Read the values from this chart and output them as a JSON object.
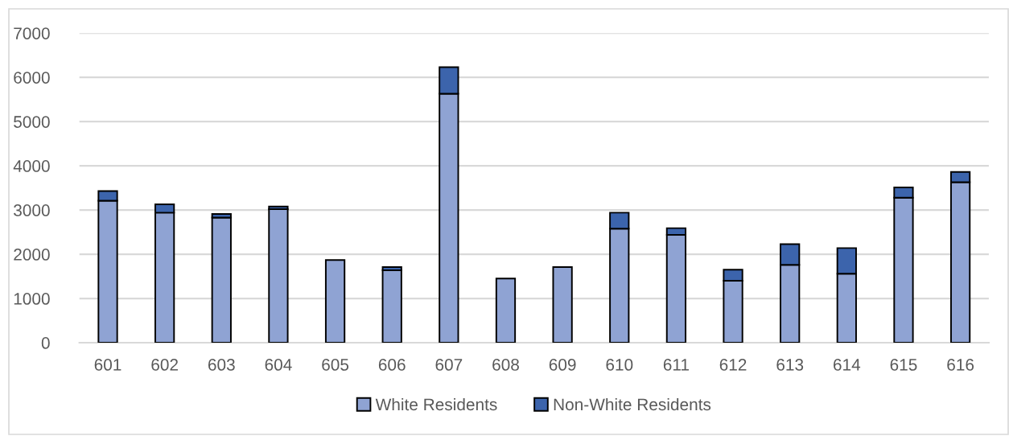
{
  "chart_data": {
    "type": "bar",
    "stacked": true,
    "categories": [
      "601",
      "602",
      "603",
      "604",
      "605",
      "606",
      "607",
      "608",
      "609",
      "610",
      "611",
      "612",
      "613",
      "614",
      "615",
      "616"
    ],
    "series": [
      {
        "name": "White Residents",
        "color": "#8fa3d3",
        "values": [
          3210,
          2940,
          2830,
          3020,
          1870,
          1640,
          5630,
          1450,
          1710,
          2580,
          2440,
          1400,
          1760,
          1560,
          3280,
          3630
        ]
      },
      {
        "name": "Non-White Residents",
        "color": "#3c64ac",
        "values": [
          220,
          190,
          80,
          60,
          null,
          70,
          600,
          null,
          null,
          360,
          150,
          250,
          470,
          580,
          230,
          230
        ]
      }
    ],
    "ylim": [
      0,
      7000
    ],
    "yticks": [
      0,
      1000,
      2000,
      3000,
      4000,
      5000,
      6000,
      7000
    ],
    "grid": "y",
    "legend": "bottom"
  }
}
